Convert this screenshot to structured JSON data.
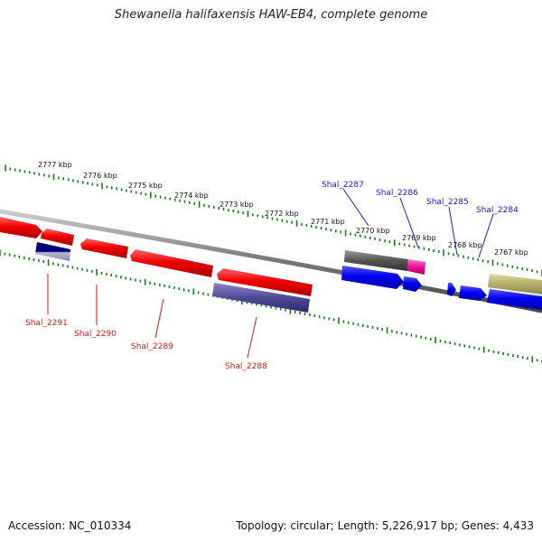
{
  "title": "Shewanella halifaxensis HAW-EB4, complete genome",
  "footer": {
    "accession": "Accession: NC_010334",
    "summary": "Topology: circular; Length: 5,226,917 bp; Genes: 4,433"
  },
  "colors": {
    "tick": "#1a7a1a",
    "forward_label": "#1a1acc",
    "reverse_label": "#cc1a1a",
    "backbone": "#888888"
  },
  "ticks": [
    "2777 kbp",
    "2776 kbp",
    "2775 kbp",
    "2774 kbp",
    "2773 kbp",
    "2772 kbp",
    "2771 kbp",
    "2770 kbp",
    "2769 kbp",
    "2768 kbp",
    "2767 kbp"
  ],
  "forward_labels": [
    "Shal_2287",
    "Shal_2286",
    "Shal_2285",
    "Shal_2284"
  ],
  "reverse_labels": [
    "Shal_2291",
    "Shal_2290",
    "Shal_2289",
    "Shal_2288"
  ]
}
